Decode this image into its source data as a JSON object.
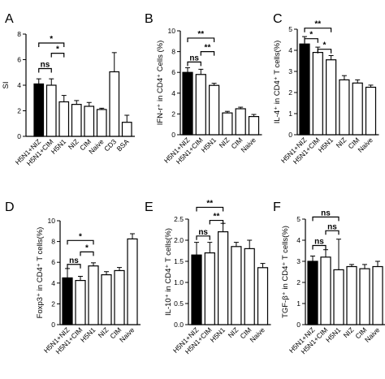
{
  "chart_data": [
    {
      "panel": "A",
      "type": "bar",
      "ylabel": "SI",
      "ylim": [
        0,
        8
      ],
      "yticks": [
        0,
        2,
        4,
        6,
        8
      ],
      "categories": [
        "H5N1+NIZ",
        "H5N1+CIM",
        "H5N1",
        "NIZ",
        "CIM",
        "Naive",
        "CD3",
        "BSA"
      ],
      "values": [
        4.1,
        4.0,
        2.7,
        2.5,
        2.35,
        2.1,
        5.05,
        1.1
      ],
      "errors": [
        0.4,
        0.5,
        0.5,
        0.3,
        0.3,
        0.1,
        1.5,
        0.55
      ],
      "fills": [
        "#000000",
        "#ffffff",
        "#ffffff",
        "#ffffff",
        "#ffffff",
        "#ffffff",
        "#ffffff",
        "#ffffff"
      ],
      "brackets": [
        {
          "from": 0,
          "to": 2,
          "label": "*",
          "y": 7.3
        },
        {
          "from": 1,
          "to": 2,
          "label": "*",
          "y": 6.5
        },
        {
          "from": 0,
          "to": 1,
          "label": "ns",
          "y": 5.3
        }
      ]
    },
    {
      "panel": "B",
      "type": "bar",
      "ylabel": "IFN-r⁺ in CD4⁺ Cells (%)",
      "ylim": [
        0,
        10
      ],
      "yticks": [
        0,
        2,
        4,
        6,
        8,
        10
      ],
      "categories": [
        "H5N1+NIZ",
        "H5N1+CIM",
        "H5N1",
        "NIZ",
        "CIM",
        "Naive"
      ],
      "values": [
        6.0,
        5.8,
        4.75,
        2.1,
        2.5,
        1.75
      ],
      "errors": [
        0.45,
        0.5,
        0.2,
        0.15,
        0.15,
        0.2
      ],
      "fills": [
        "#000000",
        "#ffffff",
        "#ffffff",
        "#ffffff",
        "#ffffff",
        "#ffffff"
      ],
      "brackets": [
        {
          "from": 0,
          "to": 2,
          "label": "**",
          "y": 9.3
        },
        {
          "from": 1,
          "to": 2,
          "label": "**",
          "y": 8.0
        },
        {
          "from": 0,
          "to": 1,
          "label": "ns",
          "y": 7.0
        }
      ]
    },
    {
      "panel": "C",
      "type": "bar",
      "ylabel": "IL-4⁺ in CD4⁺ T cells(%)",
      "ylim": [
        0,
        5
      ],
      "yticks": [
        0,
        1,
        2,
        3,
        4,
        5
      ],
      "categories": [
        "H5N1+NIZ",
        "H5N1+CIM",
        "H5N1",
        "NIZ",
        "CIM",
        "Naive"
      ],
      "values": [
        4.3,
        3.9,
        3.55,
        2.6,
        2.45,
        2.25
      ],
      "errors": [
        0.35,
        0.25,
        0.2,
        0.2,
        0.15,
        0.1
      ],
      "fills": [
        "#000000",
        "#ffffff",
        "#ffffff",
        "#ffffff",
        "#ffffff",
        "#ffffff"
      ],
      "brackets": [
        {
          "from": 0,
          "to": 2,
          "label": "**",
          "y": 5.05
        },
        {
          "from": 0,
          "to": 1,
          "label": "*",
          "y": 4.55
        },
        {
          "from": 1,
          "to": 2,
          "label": "*",
          "y": 4.05
        }
      ]
    },
    {
      "panel": "D",
      "type": "bar",
      "ylabel": "Foxp3⁺ in CD4⁺ T cells(%)",
      "ylim": [
        0,
        10
      ],
      "yticks": [
        0,
        2,
        4,
        6,
        8,
        10
      ],
      "categories": [
        "H5N1+NIZ",
        "H5N1+CIM",
        "H5N1",
        "NIZ",
        "CIM",
        "Naive"
      ],
      "values": [
        4.5,
        4.25,
        5.65,
        4.8,
        5.2,
        8.25
      ],
      "errors": [
        0.9,
        0.4,
        0.3,
        0.3,
        0.3,
        0.5
      ],
      "fills": [
        "#000000",
        "#ffffff",
        "#ffffff",
        "#ffffff",
        "#ffffff",
        "#ffffff"
      ],
      "brackets": [
        {
          "from": 0,
          "to": 2,
          "label": "*",
          "y": 8.1
        },
        {
          "from": 1,
          "to": 2,
          "label": "*",
          "y": 7.0
        },
        {
          "from": 0,
          "to": 1,
          "label": "ns",
          "y": 5.8
        }
      ]
    },
    {
      "panel": "E",
      "type": "bar",
      "ylabel": "IL-10⁺ in CD4⁺ T cells(%)",
      "ylim": [
        0,
        2.5
      ],
      "yticks": [
        0.0,
        0.5,
        1.0,
        1.5,
        2.0,
        2.5
      ],
      "categories": [
        "H5N1+NIZ",
        "H5N1+CIM",
        "H5N1",
        "NIZ",
        "CIM",
        "Naive"
      ],
      "values": [
        1.65,
        1.7,
        2.2,
        1.85,
        1.8,
        1.35
      ],
      "errors": [
        0.3,
        0.25,
        0.2,
        0.1,
        0.2,
        0.1
      ],
      "fills": [
        "#000000",
        "#ffffff",
        "#ffffff",
        "#ffffff",
        "#ffffff",
        "#ffffff"
      ],
      "brackets": [
        {
          "from": 0,
          "to": 2,
          "label": "**",
          "y": 2.78
        },
        {
          "from": 1,
          "to": 2,
          "label": "**",
          "y": 2.47
        },
        {
          "from": 0,
          "to": 1,
          "label": "ns",
          "y": 2.1
        }
      ]
    },
    {
      "panel": "F",
      "type": "bar",
      "ylabel": "TGF-β⁺ in CD4⁺ T cells(%)",
      "ylim": [
        0,
        5
      ],
      "yticks": [
        0,
        1,
        2,
        3,
        4,
        5
      ],
      "categories": [
        "H5N1+NIZ",
        "H5N1+CIM",
        "H5N1",
        "NIZ",
        "CIM",
        "Naive"
      ],
      "values": [
        3.0,
        3.2,
        2.6,
        2.75,
        2.65,
        2.75
      ],
      "errors": [
        0.25,
        0.35,
        1.45,
        0.1,
        0.2,
        0.25
      ],
      "fills": [
        "#000000",
        "#ffffff",
        "#ffffff",
        "#ffffff",
        "#ffffff",
        "#ffffff"
      ],
      "brackets": [
        {
          "from": 0,
          "to": 2,
          "label": "ns",
          "y": 5.1
        },
        {
          "from": 1,
          "to": 2,
          "label": "ns",
          "y": 4.45
        },
        {
          "from": 0,
          "to": 1,
          "label": "ns",
          "y": 3.75
        }
      ]
    }
  ]
}
